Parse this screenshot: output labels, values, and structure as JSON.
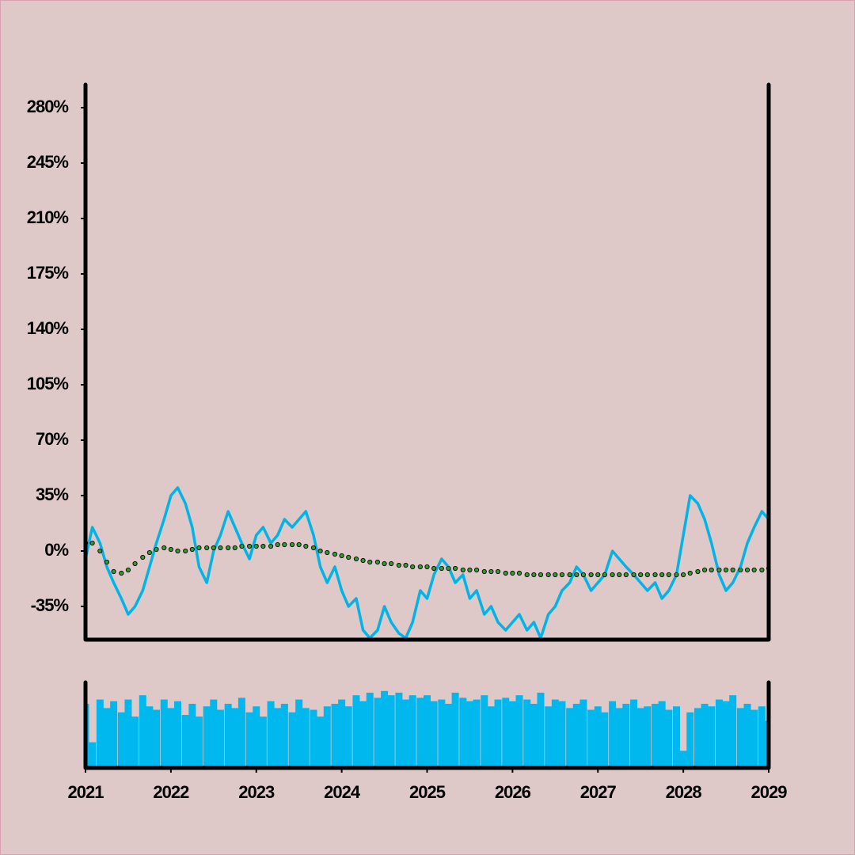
{
  "chart_data": [
    {
      "type": "line",
      "x": [
        2021,
        2021.08,
        2021.17,
        2021.25,
        2021.33,
        2021.42,
        2021.5,
        2021.58,
        2021.67,
        2021.75,
        2021.83,
        2021.92,
        2022,
        2022.08,
        2022.17,
        2022.25,
        2022.33,
        2022.42,
        2022.5,
        2022.58,
        2022.67,
        2022.75,
        2022.83,
        2022.92,
        2023,
        2023.08,
        2023.17,
        2023.25,
        2023.33,
        2023.42,
        2023.5,
        2023.58,
        2023.67,
        2023.75,
        2023.83,
        2023.92,
        2024,
        2024.08,
        2024.17,
        2024.25,
        2024.33,
        2024.42,
        2024.5,
        2024.58,
        2024.67,
        2024.75,
        2024.83,
        2024.92,
        2025,
        2025.08,
        2025.17,
        2025.25,
        2025.33,
        2025.42,
        2025.5,
        2025.58,
        2025.67,
        2025.75,
        2025.83,
        2025.92,
        2026,
        2026.08,
        2026.17,
        2026.25,
        2026.33,
        2026.42,
        2026.5,
        2026.58,
        2026.67,
        2026.75,
        2026.83,
        2026.92,
        2027,
        2027.08,
        2027.17,
        2027.25,
        2027.33,
        2027.42,
        2027.5,
        2027.58,
        2027.67,
        2027.75,
        2027.83,
        2027.92,
        2028,
        2028.08,
        2028.17,
        2028.25,
        2028.33,
        2028.42,
        2028.5,
        2028.58,
        2028.67,
        2028.75,
        2028.83,
        2028.92,
        2029
      ],
      "series": [
        {
          "style": "line",
          "color": "#00b4e8",
          "values": [
            -5,
            15,
            5,
            -10,
            -20,
            -30,
            -40,
            -35,
            -25,
            -10,
            5,
            20,
            35,
            40,
            30,
            15,
            -10,
            -20,
            0,
            10,
            25,
            15,
            5,
            -5,
            10,
            15,
            5,
            10,
            20,
            15,
            20,
            25,
            10,
            -10,
            -20,
            -10,
            -25,
            -35,
            -30,
            -50,
            -55,
            -50,
            -35,
            -45,
            -52,
            -55,
            -45,
            -25,
            -30,
            -15,
            -5,
            -10,
            -20,
            -15,
            -30,
            -25,
            -40,
            -35,
            -45,
            -50,
            -45,
            -40,
            -50,
            -45,
            -55,
            -40,
            -35,
            -25,
            -20,
            -10,
            -15,
            -25,
            -20,
            -15,
            0,
            -5,
            -10,
            -15,
            -20,
            -25,
            -20,
            -30,
            -25,
            -15,
            10,
            35,
            30,
            20,
            5,
            -15,
            -25,
            -20,
            -10,
            5,
            15,
            25,
            20
          ]
        },
        {
          "style": "dots",
          "color": "#2e9e2e",
          "values": [
            5,
            5,
            0,
            -7,
            -13,
            -14,
            -12,
            -8,
            -4,
            -1,
            1,
            2,
            1,
            0,
            0,
            1,
            2,
            2,
            2,
            2,
            2,
            2,
            3,
            3,
            3,
            3,
            3,
            4,
            4,
            4,
            4,
            3,
            2,
            0,
            -1,
            -2,
            -3,
            -4,
            -5,
            -6,
            -7,
            -7,
            -8,
            -8,
            -9,
            -9,
            -10,
            -10,
            -10,
            -11,
            -11,
            -11,
            -11,
            -12,
            -12,
            -12,
            -13,
            -13,
            -13,
            -14,
            -14,
            -14,
            -15,
            -15,
            -15,
            -15,
            -15,
            -15,
            -15,
            -15,
            -15,
            -15,
            -15,
            -15,
            -15,
            -15,
            -15,
            -15,
            -15,
            -15,
            -15,
            -15,
            -15,
            -15,
            -15,
            -14,
            -13,
            -12,
            -12,
            -12,
            -12,
            -12,
            -12,
            -12,
            -12,
            -12,
            -11
          ]
        }
      ],
      "xlim": [
        2021,
        2029
      ],
      "ylim": [
        -56,
        294.5
      ],
      "yticks": [
        {
          "value": -35,
          "label": "-35%"
        },
        {
          "value": 0,
          "label": "0%"
        },
        {
          "value": 35,
          "label": "35%"
        },
        {
          "value": 70,
          "label": "70%"
        },
        {
          "value": 105,
          "label": "105%"
        },
        {
          "value": 140,
          "label": "140%"
        },
        {
          "value": 175,
          "label": "175%"
        },
        {
          "value": 210,
          "label": "210%"
        },
        {
          "value": 245,
          "label": "245%"
        },
        {
          "value": 280,
          "label": "280%"
        }
      ]
    },
    {
      "type": "bar",
      "color": "#00b8ee",
      "x": [
        2021,
        2021.08,
        2021.17,
        2021.25,
        2021.33,
        2021.42,
        2021.5,
        2021.58,
        2021.67,
        2021.75,
        2021.83,
        2021.92,
        2022,
        2022.08,
        2022.17,
        2022.25,
        2022.33,
        2022.42,
        2022.5,
        2022.58,
        2022.67,
        2022.75,
        2022.83,
        2022.92,
        2023,
        2023.08,
        2023.17,
        2023.25,
        2023.33,
        2023.42,
        2023.5,
        2023.58,
        2023.67,
        2023.75,
        2023.83,
        2023.92,
        2024,
        2024.08,
        2024.17,
        2024.25,
        2024.33,
        2024.42,
        2024.5,
        2024.58,
        2024.67,
        2024.75,
        2024.83,
        2024.92,
        2025,
        2025.08,
        2025.17,
        2025.25,
        2025.33,
        2025.42,
        2025.5,
        2025.58,
        2025.67,
        2025.75,
        2025.83,
        2025.92,
        2026,
        2026.08,
        2026.17,
        2026.25,
        2026.33,
        2026.42,
        2026.5,
        2026.58,
        2026.67,
        2026.75,
        2026.83,
        2026.92,
        2027,
        2027.08,
        2027.17,
        2027.25,
        2027.33,
        2027.42,
        2027.5,
        2027.58,
        2027.67,
        2027.75,
        2027.83,
        2027.92,
        2028,
        2028.08,
        2028.17,
        2028.25,
        2028.33,
        2028.42,
        2028.5,
        2028.58,
        2028.67,
        2028.75,
        2028.83,
        2028.92,
        2029
      ],
      "values": [
        75,
        30,
        80,
        70,
        78,
        65,
        80,
        60,
        85,
        72,
        68,
        80,
        70,
        78,
        62,
        75,
        60,
        72,
        80,
        68,
        75,
        70,
        82,
        65,
        72,
        60,
        78,
        70,
        75,
        65,
        80,
        70,
        68,
        60,
        72,
        75,
        80,
        72,
        85,
        78,
        88,
        82,
        90,
        85,
        88,
        80,
        85,
        82,
        85,
        78,
        80,
        75,
        88,
        82,
        78,
        80,
        85,
        72,
        80,
        82,
        78,
        85,
        80,
        75,
        88,
        72,
        80,
        78,
        70,
        75,
        80,
        68,
        72,
        65,
        78,
        70,
        75,
        80,
        70,
        72,
        75,
        78,
        68,
        72,
        20,
        65,
        70,
        75,
        72,
        80,
        78,
        85,
        70,
        75,
        68,
        72,
        55
      ],
      "xlim": [
        2021,
        2029
      ],
      "ylim": [
        0,
        100
      ],
      "xticks": [
        2021,
        2022,
        2023,
        2024,
        2025,
        2026,
        2027,
        2028,
        2029
      ]
    }
  ]
}
